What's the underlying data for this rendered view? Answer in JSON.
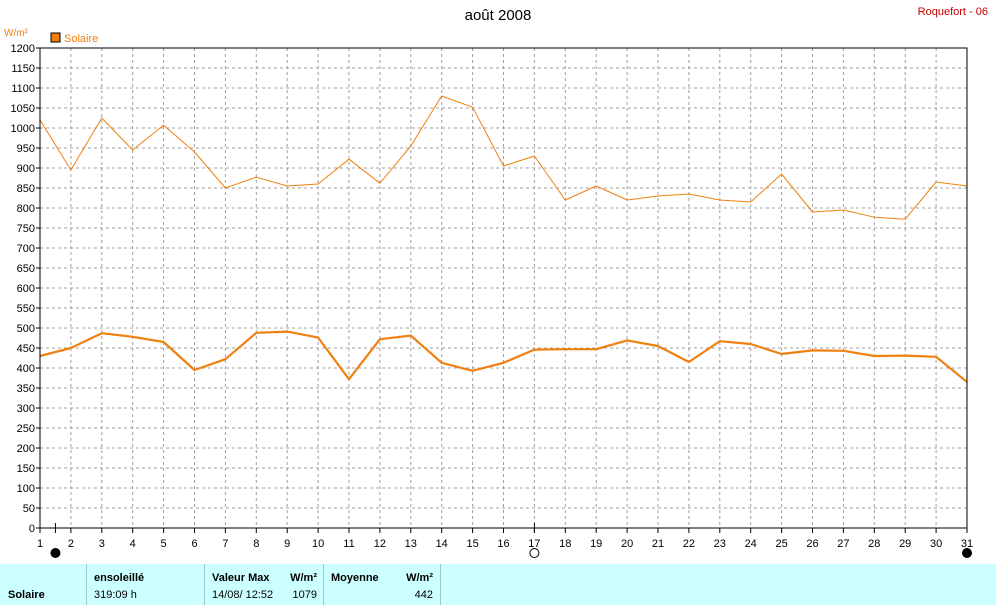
{
  "header": {
    "title": "août 2008",
    "station": "Roquefort - 06"
  },
  "chart_data": {
    "type": "line",
    "ylabel": "W/m²",
    "ylim": [
      0,
      1200
    ],
    "yticks": [
      0,
      50,
      100,
      150,
      200,
      250,
      300,
      350,
      400,
      450,
      500,
      550,
      600,
      650,
      700,
      750,
      800,
      850,
      900,
      950,
      1000,
      1050,
      1100,
      1150,
      1200
    ],
    "x": [
      1,
      2,
      3,
      4,
      5,
      6,
      7,
      8,
      9,
      10,
      11,
      12,
      13,
      14,
      15,
      16,
      17,
      18,
      19,
      20,
      21,
      22,
      23,
      24,
      25,
      26,
      27,
      28,
      29,
      30,
      31
    ],
    "xlim": [
      1,
      31
    ],
    "grid": true,
    "legend": "top-left",
    "legend_entry": "Solaire",
    "color": "#f08010",
    "series": [
      {
        "name": "Solaire",
        "role": "max",
        "values": [
          1020,
          895,
          1025,
          945,
          1007,
          940,
          850,
          877,
          855,
          860,
          922,
          862,
          955,
          1080,
          1052,
          905,
          930,
          820,
          855,
          820,
          830,
          835,
          820,
          815,
          885,
          790,
          795,
          777,
          772,
          865,
          855
        ]
      },
      {
        "name": "Solaire",
        "role": "mean",
        "values": [
          430,
          450,
          487,
          478,
          465,
          395,
          422,
          488,
          491,
          476,
          372,
          472,
          481,
          413,
          393,
          413,
          446,
          447,
          447,
          469,
          455,
          415,
          467,
          460,
          435,
          444,
          443,
          430,
          431,
          428,
          365
        ]
      }
    ],
    "moon_phases": [
      {
        "day": 1.5,
        "phase": "new"
      },
      {
        "day": 17,
        "phase": "full"
      },
      {
        "day": 31,
        "phase": "new"
      }
    ]
  },
  "footer": {
    "series_label": "Solaire",
    "sunshine_header": "ensoleillé",
    "sunshine_value": "319:09 h",
    "max_header": "Valeur Max",
    "max_unit": "W/m²",
    "max_date": "14/08/  12:52",
    "max_value": "1079",
    "avg_header": "Moyenne",
    "avg_unit": "W/m²",
    "avg_value": "442"
  }
}
